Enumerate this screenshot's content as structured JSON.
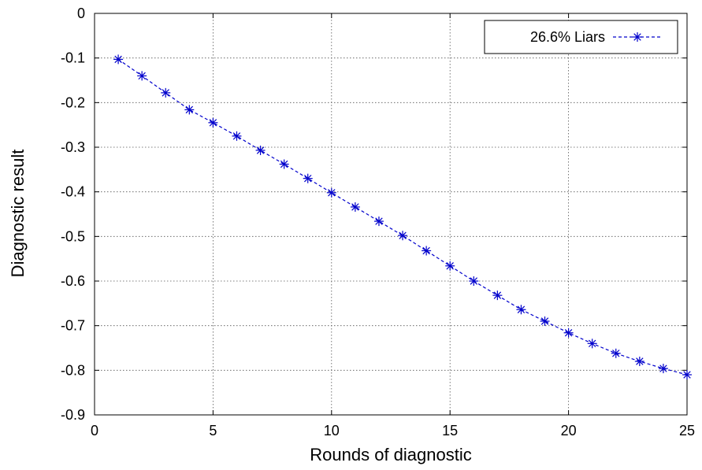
{
  "chart_data": {
    "type": "line",
    "xlabel": "Rounds of diagnostic",
    "ylabel": "Diagnostic result",
    "xlim": [
      0,
      25
    ],
    "ylim": [
      -0.9,
      0
    ],
    "xticks": [
      0,
      5,
      10,
      15,
      20,
      25
    ],
    "yticks": [
      0,
      -0.1,
      -0.2,
      -0.3,
      -0.4,
      -0.5,
      -0.6,
      -0.7,
      -0.8,
      -0.9
    ],
    "xtick_labels": [
      "0",
      "5",
      "10",
      "15",
      "20",
      "25"
    ],
    "ytick_labels": [
      "0",
      "-0.1",
      "-0.2",
      "-0.3",
      "-0.4",
      "-0.5",
      "-0.6",
      "-0.7",
      "-0.8",
      "-0.9"
    ],
    "grid": true,
    "legend_position": "top-right",
    "series": [
      {
        "name": "26.6% Liars",
        "color": "#0000cc",
        "marker": "asterisk",
        "line_style": "dashed",
        "x": [
          1,
          2,
          3,
          4,
          5,
          6,
          7,
          8,
          9,
          10,
          11,
          12,
          13,
          14,
          15,
          16,
          17,
          18,
          19,
          20,
          21,
          22,
          23,
          24,
          25
        ],
        "y": [
          -0.103,
          -0.14,
          -0.178,
          -0.216,
          -0.245,
          -0.275,
          -0.307,
          -0.338,
          -0.37,
          -0.402,
          -0.434,
          -0.466,
          -0.498,
          -0.532,
          -0.566,
          -0.6,
          -0.632,
          -0.664,
          -0.69,
          -0.716,
          -0.74,
          -0.762,
          -0.78,
          -0.796,
          -0.81
        ]
      }
    ]
  }
}
